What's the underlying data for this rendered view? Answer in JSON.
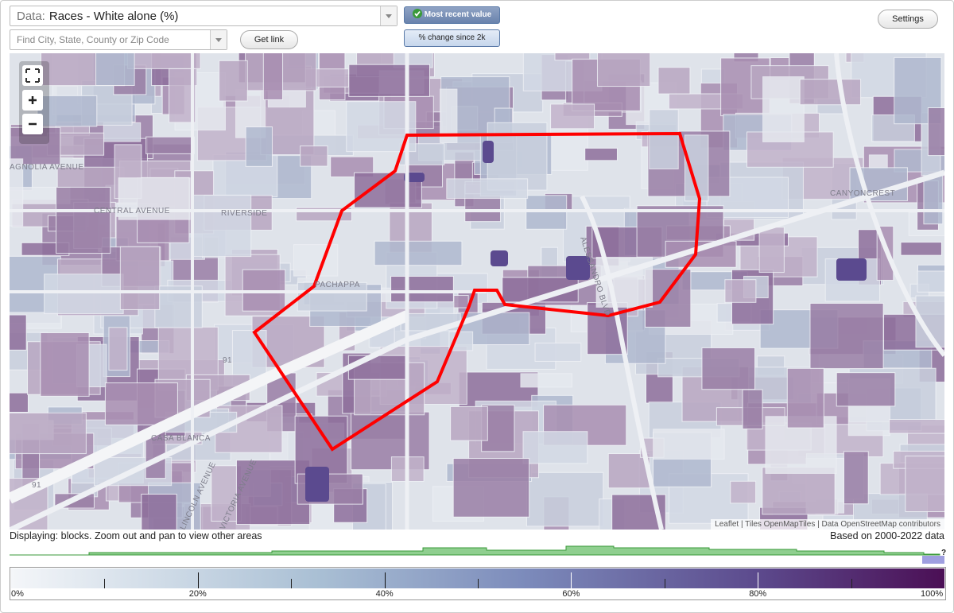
{
  "header": {
    "data_label": "Data:",
    "data_value": "Races - White alone (%)",
    "search_placeholder": "Find City, State, County or Zip Code",
    "get_link": "Get link",
    "mode_recent": "Most recent value",
    "mode_change": "% change since 2k",
    "settings": "Settings"
  },
  "map": {
    "labels": [
      "AGNOLIA AVENUE",
      "CENTRAL AVENUE",
      "RIVERSIDE",
      "PACHAPPA",
      "CANYONCREST",
      "CASA BLANCA",
      "LINCOLN AVENUE",
      "VICTORIA AVENUE",
      "91",
      "91",
      "ALESSANDRO BLVD"
    ],
    "attribution": "Leaflet | Tiles OpenMapTiles | Data OpenStreetMap contributors"
  },
  "footer": {
    "displaying": "Displaying: blocks. Zoom out and pan to view other areas",
    "based_on": "Based on 2000-2022 data",
    "help": "?"
  },
  "legend": {
    "ticks": [
      {
        "value": 0,
        "label": "0%"
      },
      {
        "value": 20,
        "label": "20%"
      },
      {
        "value": 40,
        "label": "40%"
      },
      {
        "value": 60,
        "label": "60%"
      },
      {
        "value": 80,
        "label": "80%"
      },
      {
        "value": 100,
        "label": "100%"
      }
    ]
  }
}
